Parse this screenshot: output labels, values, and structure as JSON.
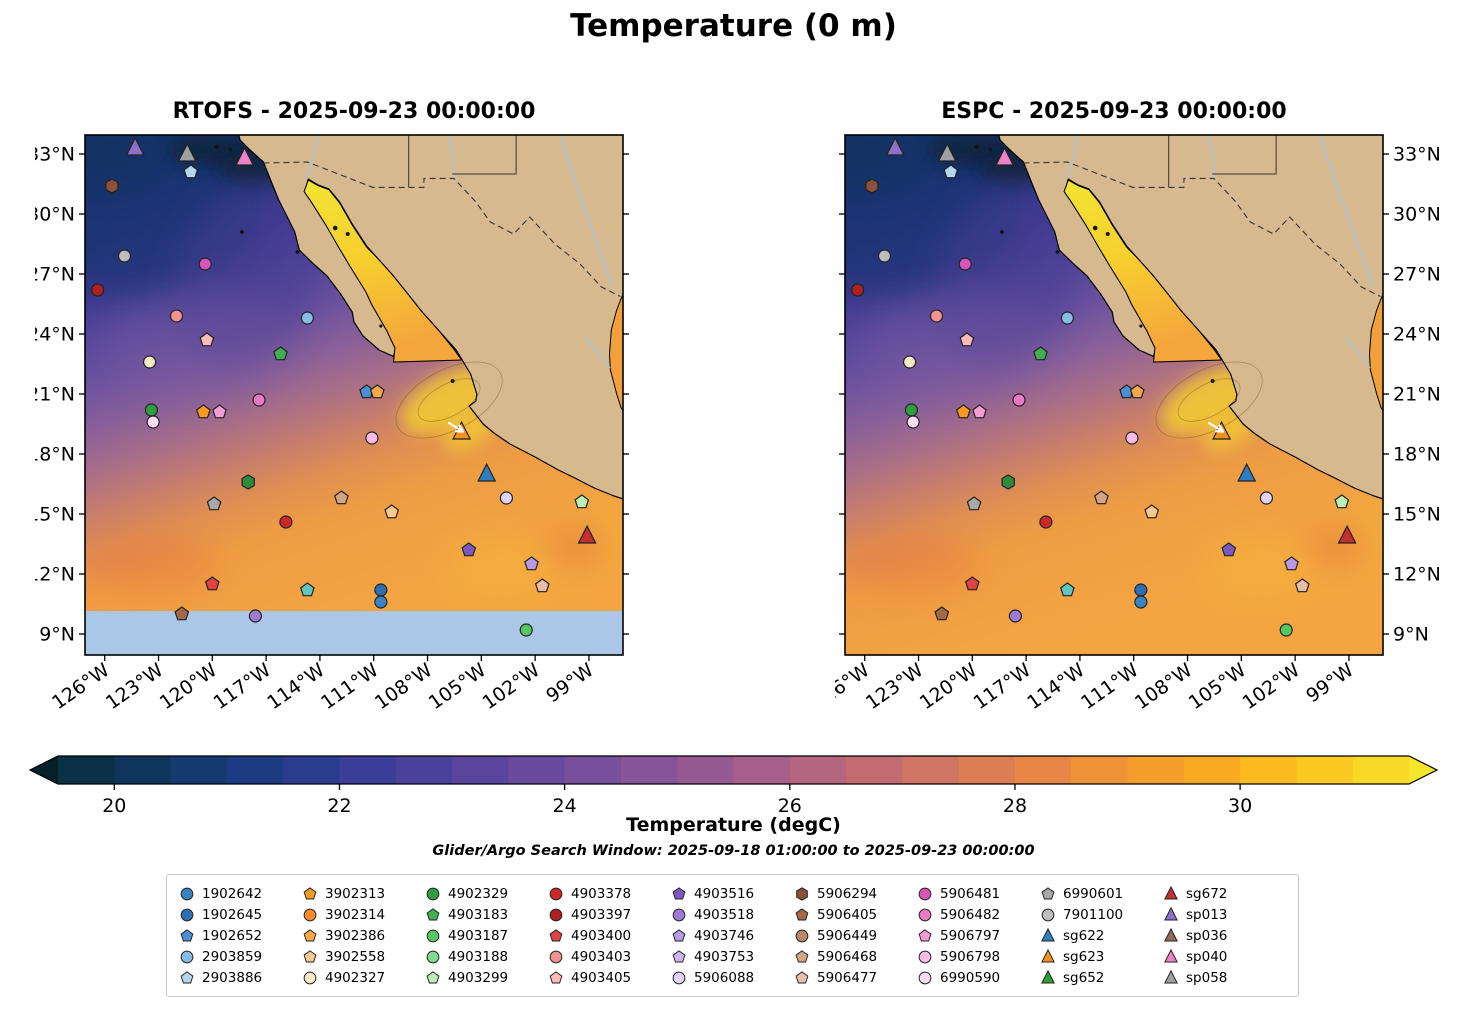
{
  "chart_data": {
    "type": "heatmap",
    "title": "Temperature (0 m)",
    "subtitle": "Glider/Argo Search Window: 2025-09-18 01:00:00 to 2025-09-23 00:00:00",
    "panels": [
      {
        "id": "rtofs",
        "title": "RTOFS - 2025-09-23 00:00:00",
        "lat_label_side": "left",
        "nodata_band_below_lat": 10.15
      },
      {
        "id": "espc",
        "title": "ESPC - 2025-09-23 00:00:00",
        "lat_label_side": "right",
        "nodata_band_below_lat": null
      }
    ],
    "axes": {
      "lon_tick_values": [
        -126,
        -123,
        -120,
        -117,
        -114,
        -111,
        -108,
        -105,
        -102,
        -99
      ],
      "lon_tick_labels": [
        "126°W",
        "123°W",
        "120°W",
        "117°W",
        "114°W",
        "111°W",
        "108°W",
        "105°W",
        "102°W",
        "99°W"
      ],
      "lat_tick_values": [
        33,
        30,
        27,
        24,
        21,
        18,
        15,
        12,
        9
      ],
      "lat_tick_labels": [
        "33°N",
        "30°N",
        "27°N",
        "24°N",
        "21°N",
        "18°N",
        "15°N",
        "12°N",
        "9°N"
      ],
      "lon_range": [
        -127.1,
        -97.1
      ],
      "lat_range": [
        7.95,
        33.95
      ],
      "grid": false
    },
    "colorbar": {
      "label": "Temperature (degC)",
      "tick_values": [
        20,
        22,
        24,
        26,
        28,
        30
      ],
      "range": [
        19.5,
        31.5
      ],
      "segment_colors": [
        "#0b3146",
        "#10355c",
        "#153a70",
        "#1d3b82",
        "#2b3c8f",
        "#3a3e97",
        "#4a419b",
        "#59459d",
        "#684a9e",
        "#784f9d",
        "#87549a",
        "#965a93",
        "#a55f8a",
        "#b4657f",
        "#c26c72",
        "#d07463",
        "#dd7d54",
        "#e88745",
        "#f09237",
        "#f69e2b",
        "#faab22",
        "#fbba1e",
        "#fbca20",
        "#f8da26"
      ],
      "under_arrow_color": "#062029",
      "over_arrow_color": "#f3e62b"
    },
    "legend": {
      "entries": [
        {
          "id": "1902642",
          "shape": "circle",
          "color": "#3b82c4"
        },
        {
          "id": "1902645",
          "shape": "circle",
          "color": "#2f6db5"
        },
        {
          "id": "1902652",
          "shape": "pentagon",
          "color": "#4a8fd2"
        },
        {
          "id": "2903859",
          "shape": "circle",
          "color": "#85bce5"
        },
        {
          "id": "2903886",
          "shape": "pentagon",
          "color": "#b5d7ee"
        },
        {
          "id": "3902313",
          "shape": "pentagon",
          "color": "#f59b20"
        },
        {
          "id": "3902314",
          "shape": "circle",
          "color": "#f78c28"
        },
        {
          "id": "3902386",
          "shape": "pentagon",
          "color": "#f9a847"
        },
        {
          "id": "3902558",
          "shape": "pentagon",
          "color": "#fbc88d"
        },
        {
          "id": "4902327",
          "shape": "circle",
          "color": "#fde9c8"
        },
        {
          "id": "4902329",
          "shape": "circle",
          "color": "#2f9e41"
        },
        {
          "id": "4903183",
          "shape": "pentagon",
          "color": "#41b052"
        },
        {
          "id": "4903187",
          "shape": "circle",
          "color": "#55c865"
        },
        {
          "id": "4903188",
          "shape": "circle",
          "color": "#84da8e"
        },
        {
          "id": "4903299",
          "shape": "pentagon",
          "color": "#bdeeb6"
        },
        {
          "id": "4903378",
          "shape": "circle",
          "color": "#cd2828"
        },
        {
          "id": "4903397",
          "shape": "circle",
          "color": "#b01f1f"
        },
        {
          "id": "4903400",
          "shape": "pentagon",
          "color": "#e04343"
        },
        {
          "id": "4903403",
          "shape": "circle",
          "color": "#f29290"
        },
        {
          "id": "4903405",
          "shape": "pentagon",
          "color": "#f9bcba"
        },
        {
          "id": "4903516",
          "shape": "pentagon",
          "color": "#7e58c2"
        },
        {
          "id": "4903518",
          "shape": "circle",
          "color": "#9b7bd3"
        },
        {
          "id": "4903746",
          "shape": "pentagon",
          "color": "#b79ae2"
        },
        {
          "id": "4903753",
          "shape": "pentagon",
          "color": "#cdb6ee"
        },
        {
          "id": "5906088",
          "shape": "circle",
          "color": "#e2d4f6"
        },
        {
          "id": "5906294",
          "shape": "hexagon",
          "color": "#8a5138"
        },
        {
          "id": "5906405",
          "shape": "pentagon",
          "color": "#a36a47"
        },
        {
          "id": "5906449",
          "shape": "circle",
          "color": "#bb8663"
        },
        {
          "id": "5906468",
          "shape": "pentagon",
          "color": "#d3a585"
        },
        {
          "id": "5906477",
          "shape": "pentagon",
          "color": "#e7bfa6"
        },
        {
          "id": "5906481",
          "shape": "circle",
          "color": "#d855b8"
        },
        {
          "id": "5906482",
          "shape": "circle",
          "color": "#ea79c6"
        },
        {
          "id": "5906797",
          "shape": "pentagon",
          "color": "#f49cd6"
        },
        {
          "id": "5906798",
          "shape": "circle",
          "color": "#f9bde4"
        },
        {
          "id": "6990590",
          "shape": "circle",
          "color": "#fcdcf0"
        },
        {
          "id": "6990601",
          "shape": "pentagon",
          "color": "#a8a8a8"
        },
        {
          "id": "7901100",
          "shape": "circle",
          "color": "#bdbdbd"
        },
        {
          "id": "sg622",
          "shape": "triangle",
          "color": "#2e7ebf"
        },
        {
          "id": "sg623",
          "shape": "triangle",
          "color": "#f5921e"
        },
        {
          "id": "sg652",
          "shape": "triangle",
          "color": "#2ca02c"
        },
        {
          "id": "sg672",
          "shape": "triangle",
          "color": "#c23030"
        },
        {
          "id": "sp013",
          "shape": "triangle",
          "color": "#8d6fc9"
        },
        {
          "id": "sp036",
          "shape": "triangle",
          "color": "#8d6a55"
        },
        {
          "id": "sp040",
          "shape": "triangle",
          "color": "#ee82c8"
        },
        {
          "id": "sp058",
          "shape": "triangle",
          "color": "#a0a0a0"
        }
      ]
    },
    "markers": [
      {
        "id": "sp013",
        "shape": "triangle",
        "color": "#8d6fc9",
        "lon": -124.3,
        "lat": 33.3
      },
      {
        "id": "sp058",
        "shape": "triangle",
        "color": "#a0a0a0",
        "lon": -121.4,
        "lat": 33.0
      },
      {
        "id": "sp040",
        "shape": "triangle",
        "color": "#ee82c8",
        "lon": -118.2,
        "lat": 32.8
      },
      {
        "id": "5906294",
        "shape": "hexagon",
        "color": "#8a5138",
        "lon": -125.6,
        "lat": 31.4
      },
      {
        "id": "2903886",
        "shape": "pentagon",
        "color": "#b5d7ee",
        "lon": -121.2,
        "lat": 32.1
      },
      {
        "id": "7901100",
        "shape": "circle",
        "color": "#bdbdbd",
        "lon": -124.9,
        "lat": 27.9
      },
      {
        "id": "5906481",
        "shape": "circle",
        "color": "#d855b8",
        "lon": -120.4,
        "lat": 27.5
      },
      {
        "id": "4903397",
        "shape": "circle",
        "color": "#b01f1f",
        "lon": -126.4,
        "lat": 26.2
      },
      {
        "id": "4903403",
        "shape": "circle",
        "color": "#f29290",
        "lon": -122.0,
        "lat": 24.9
      },
      {
        "id": "2903859",
        "shape": "circle",
        "color": "#85bce5",
        "lon": -114.7,
        "lat": 24.8
      },
      {
        "id": "4903405",
        "shape": "pentagon",
        "color": "#f9bcba",
        "lon": -120.3,
        "lat": 23.7
      },
      {
        "id": "4903183",
        "shape": "pentagon",
        "color": "#41b052",
        "lon": -116.2,
        "lat": 23.0
      },
      {
        "id": "4902327",
        "shape": "circle",
        "color": "#fde9c8",
        "lon": -123.5,
        "lat": 22.6
      },
      {
        "id": "5906482",
        "shape": "circle",
        "color": "#ea79c6",
        "lon": -117.4,
        "lat": 20.7
      },
      {
        "id": "4902329",
        "shape": "circle",
        "color": "#2f9e41",
        "lon": -123.4,
        "lat": 20.2
      },
      {
        "id": "6990590",
        "shape": "circle",
        "color": "#fcdcf0",
        "lon": -123.3,
        "lat": 19.6
      },
      {
        "id": "3902313",
        "shape": "pentagon",
        "color": "#f59b20",
        "lon": -120.5,
        "lat": 20.1
      },
      {
        "id": "5906797",
        "shape": "pentagon",
        "color": "#f49cd6",
        "lon": -119.6,
        "lat": 20.1
      },
      {
        "id": "1902652",
        "shape": "pentagon",
        "color": "#4a8fd2",
        "lon": -111.4,
        "lat": 21.1
      },
      {
        "id": "3902386",
        "shape": "pentagon",
        "color": "#f9a847",
        "lon": -110.8,
        "lat": 21.1
      },
      {
        "id": "5906798",
        "shape": "circle",
        "color": "#f9bde4",
        "lon": -111.1,
        "lat": 18.8
      },
      {
        "id": "sg623",
        "shape": "triangle",
        "color": "#f5921e",
        "lon": -106.1,
        "lat": 19.1
      },
      {
        "id": "sg622",
        "shape": "triangle",
        "color": "#2e7ebf",
        "lon": -104.7,
        "lat": 17.0
      },
      {
        "id": "float",
        "shape": "hexagon",
        "color": "#2e8b3a",
        "lon": -118.0,
        "lat": 16.6
      },
      {
        "id": "6990601",
        "shape": "pentagon",
        "color": "#a8a8a8",
        "lon": -119.9,
        "lat": 15.5
      },
      {
        "id": "4903378",
        "shape": "circle",
        "color": "#cd2828",
        "lon": -115.9,
        "lat": 14.6
      },
      {
        "id": "5906468",
        "shape": "pentagon",
        "color": "#d3a585",
        "lon": -112.8,
        "lat": 15.8
      },
      {
        "id": "3902558",
        "shape": "pentagon",
        "color": "#fbc88d",
        "lon": -110.0,
        "lat": 15.1
      },
      {
        "id": "5906088",
        "shape": "circle",
        "color": "#e2d4f6",
        "lon": -103.6,
        "lat": 15.8
      },
      {
        "id": "4903299",
        "shape": "pentagon",
        "color": "#bdeeb6",
        "lon": -99.4,
        "lat": 15.6
      },
      {
        "id": "sg672",
        "shape": "triangle",
        "color": "#c23030",
        "lon": -99.1,
        "lat": 13.9
      },
      {
        "id": "4903516",
        "shape": "pentagon",
        "color": "#7e58c2",
        "lon": -105.7,
        "lat": 13.2
      },
      {
        "id": "4903746",
        "shape": "pentagon",
        "color": "#b79ae2",
        "lon": -102.2,
        "lat": 12.5
      },
      {
        "id": "4903400",
        "shape": "pentagon",
        "color": "#e04343",
        "lon": -120.0,
        "lat": 11.5
      },
      {
        "id": "float2",
        "shape": "pentagon",
        "color": "#63c6bc",
        "lon": -114.7,
        "lat": 11.2
      },
      {
        "id": "1902645",
        "shape": "circle",
        "color": "#2f6db5",
        "lon": -110.6,
        "lat": 11.2
      },
      {
        "id": "1902642",
        "shape": "circle",
        "color": "#3b82c4",
        "lon": -110.6,
        "lat": 10.6
      },
      {
        "id": "5906477",
        "shape": "pentagon",
        "color": "#e7bfa6",
        "lon": -101.6,
        "lat": 11.4
      },
      {
        "id": "5906405",
        "shape": "pentagon",
        "color": "#a36a47",
        "lon": -121.7,
        "lat": 10.0
      },
      {
        "id": "4903518",
        "shape": "circle",
        "color": "#9b7bd3",
        "lon": -117.6,
        "lat": 9.9
      },
      {
        "id": "4903187",
        "shape": "circle",
        "color": "#55c865",
        "lon": -102.5,
        "lat": 9.2
      }
    ]
  }
}
